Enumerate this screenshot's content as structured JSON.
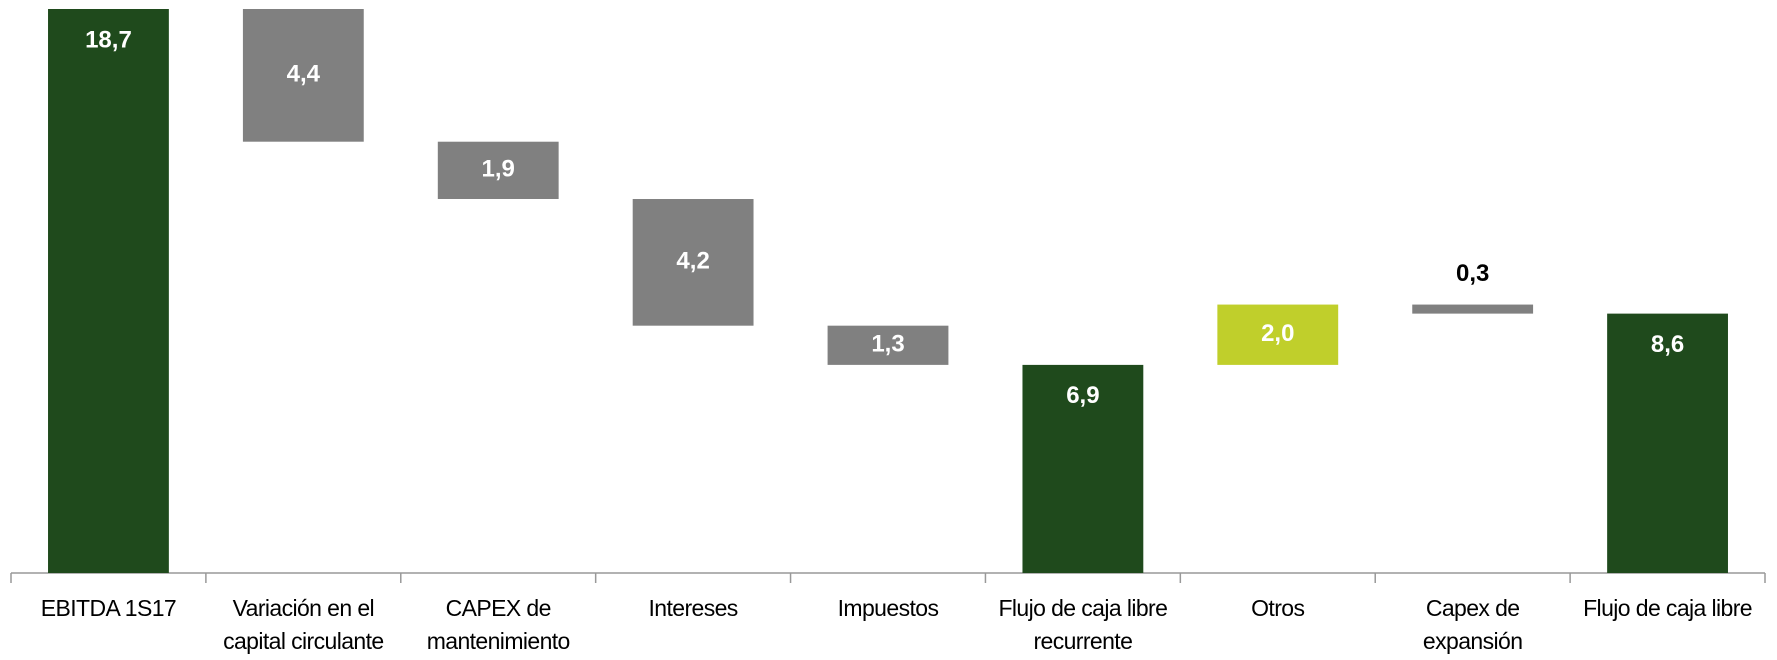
{
  "chart_data": {
    "type": "waterfall",
    "categories": [
      "EBITDA 1S17",
      "Variación en el capital circulante",
      "CAPEX de mantenimiento",
      "Intereses",
      "Impuestos",
      "Flujo de caja libre recurrente",
      "Otros",
      "Capex de expansión",
      "Flujo de caja libre"
    ],
    "values": [
      18.7,
      4.4,
      1.9,
      4.2,
      1.3,
      6.9,
      2.0,
      0.3,
      8.6
    ],
    "value_labels": [
      "18,7",
      "4,4",
      "1,9",
      "4,2",
      "1,3",
      "6,9",
      "2,0",
      "0,3",
      "8,6"
    ],
    "kinds": [
      "total",
      "decrease",
      "decrease",
      "decrease",
      "decrease",
      "total",
      "increase",
      "decrease",
      "total"
    ],
    "colors": {
      "total": "#1f4a1c",
      "decrease": "#808080",
      "increase": "#c0cf2b"
    },
    "ylim": [
      0,
      18.7
    ]
  }
}
